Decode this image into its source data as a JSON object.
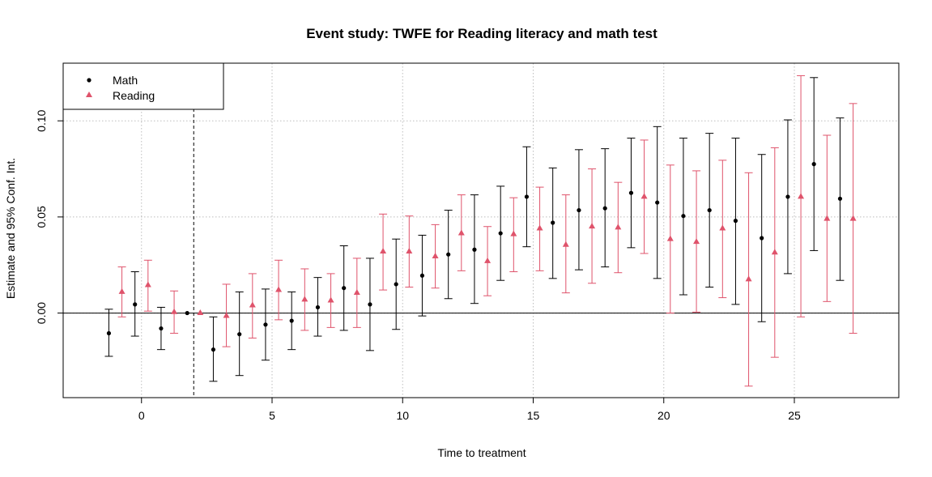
{
  "chart_data": {
    "type": "scatter",
    "title": "Event study: TWFE for Reading literacy and math test",
    "xlabel": "Time to treatment",
    "ylabel": "Estimate and 95% Conf. Int.",
    "xlim": [
      -3,
      29
    ],
    "ylim": [
      -0.044,
      0.13
    ],
    "x_ticks": [
      0,
      5,
      10,
      15,
      20,
      25
    ],
    "x_tick_labels": [
      "0",
      "5",
      "10",
      "15",
      "20",
      "25"
    ],
    "y_ticks": [
      0.0,
      0.05,
      0.1
    ],
    "y_tick_labels": [
      "0.00",
      "0.05",
      "0.10"
    ],
    "grid": true,
    "zero_line": 0,
    "treatment_line_x": 2,
    "legend_position": "top-left",
    "series": [
      {
        "name": "Math",
        "marker": "circle",
        "color": "#000000",
        "points": [
          {
            "x": -1.25,
            "y": -0.0105,
            "lo": -0.0225,
            "hi": 0.002
          },
          {
            "x": -0.25,
            "y": 0.0045,
            "lo": -0.012,
            "hi": 0.0215
          },
          {
            "x": 0.75,
            "y": -0.008,
            "lo": -0.019,
            "hi": 0.003
          },
          {
            "x": 1.75,
            "y": 0.0,
            "lo": 0.0,
            "hi": 0.0
          },
          {
            "x": 2.75,
            "y": -0.019,
            "lo": -0.0355,
            "hi": -0.002
          },
          {
            "x": 3.75,
            "y": -0.011,
            "lo": -0.0325,
            "hi": 0.011
          },
          {
            "x": 4.75,
            "y": -0.006,
            "lo": -0.0245,
            "hi": 0.0125
          },
          {
            "x": 5.75,
            "y": -0.004,
            "lo": -0.019,
            "hi": 0.011
          },
          {
            "x": 6.75,
            "y": 0.003,
            "lo": -0.012,
            "hi": 0.0185
          },
          {
            "x": 7.75,
            "y": 0.013,
            "lo": -0.009,
            "hi": 0.035
          },
          {
            "x": 8.75,
            "y": 0.0045,
            "lo": -0.0195,
            "hi": 0.0285
          },
          {
            "x": 9.75,
            "y": 0.015,
            "lo": -0.0085,
            "hi": 0.0385
          },
          {
            "x": 10.75,
            "y": 0.0195,
            "lo": -0.0015,
            "hi": 0.0405
          },
          {
            "x": 11.75,
            "y": 0.0305,
            "lo": 0.0075,
            "hi": 0.0535
          },
          {
            "x": 12.75,
            "y": 0.033,
            "lo": 0.005,
            "hi": 0.0615
          },
          {
            "x": 13.75,
            "y": 0.0415,
            "lo": 0.017,
            "hi": 0.066
          },
          {
            "x": 14.75,
            "y": 0.0605,
            "lo": 0.0345,
            "hi": 0.0865
          },
          {
            "x": 15.75,
            "y": 0.047,
            "lo": 0.018,
            "hi": 0.0755
          },
          {
            "x": 16.75,
            "y": 0.0535,
            "lo": 0.0225,
            "hi": 0.085
          },
          {
            "x": 17.75,
            "y": 0.0545,
            "lo": 0.024,
            "hi": 0.0855
          },
          {
            "x": 18.75,
            "y": 0.0625,
            "lo": 0.034,
            "hi": 0.091
          },
          {
            "x": 19.75,
            "y": 0.0575,
            "lo": 0.018,
            "hi": 0.097
          },
          {
            "x": 20.75,
            "y": 0.0505,
            "lo": 0.0095,
            "hi": 0.091
          },
          {
            "x": 21.75,
            "y": 0.0535,
            "lo": 0.0135,
            "hi": 0.0935
          },
          {
            "x": 22.75,
            "y": 0.048,
            "lo": 0.0045,
            "hi": 0.091
          },
          {
            "x": 23.75,
            "y": 0.039,
            "lo": -0.0045,
            "hi": 0.0825
          },
          {
            "x": 24.75,
            "y": 0.0605,
            "lo": 0.0205,
            "hi": 0.1005
          },
          {
            "x": 25.75,
            "y": 0.0775,
            "lo": 0.0325,
            "hi": 0.1225
          },
          {
            "x": 26.75,
            "y": 0.0595,
            "lo": 0.017,
            "hi": 0.1015
          }
        ]
      },
      {
        "name": "Reading",
        "marker": "triangle",
        "color": "#DF536B",
        "points": [
          {
            "x": -0.75,
            "y": 0.011,
            "lo": -0.002,
            "hi": 0.024
          },
          {
            "x": 0.25,
            "y": 0.0145,
            "lo": 0.001,
            "hi": 0.0275
          },
          {
            "x": 1.25,
            "y": 0.0005,
            "lo": -0.0105,
            "hi": 0.0115
          },
          {
            "x": 2.25,
            "y": 0.0,
            "lo": 0.0,
            "hi": 0.0
          },
          {
            "x": 3.25,
            "y": -0.0015,
            "lo": -0.0175,
            "hi": 0.015
          },
          {
            "x": 4.25,
            "y": 0.004,
            "lo": -0.013,
            "hi": 0.0205
          },
          {
            "x": 5.25,
            "y": 0.012,
            "lo": -0.0035,
            "hi": 0.0275
          },
          {
            "x": 6.25,
            "y": 0.007,
            "lo": -0.009,
            "hi": 0.023
          },
          {
            "x": 7.25,
            "y": 0.0065,
            "lo": -0.0075,
            "hi": 0.0205
          },
          {
            "x": 8.25,
            "y": 0.0105,
            "lo": -0.0075,
            "hi": 0.0285
          },
          {
            "x": 9.25,
            "y": 0.032,
            "lo": 0.012,
            "hi": 0.0515
          },
          {
            "x": 10.25,
            "y": 0.032,
            "lo": 0.0135,
            "hi": 0.0505
          },
          {
            "x": 11.25,
            "y": 0.0295,
            "lo": 0.013,
            "hi": 0.046
          },
          {
            "x": 12.25,
            "y": 0.0415,
            "lo": 0.022,
            "hi": 0.0615
          },
          {
            "x": 13.25,
            "y": 0.027,
            "lo": 0.009,
            "hi": 0.045
          },
          {
            "x": 14.25,
            "y": 0.041,
            "lo": 0.0215,
            "hi": 0.06
          },
          {
            "x": 15.25,
            "y": 0.044,
            "lo": 0.022,
            "hi": 0.0655
          },
          {
            "x": 16.25,
            "y": 0.0355,
            "lo": 0.0105,
            "hi": 0.0615
          },
          {
            "x": 17.25,
            "y": 0.045,
            "lo": 0.0155,
            "hi": 0.075
          },
          {
            "x": 18.25,
            "y": 0.0445,
            "lo": 0.021,
            "hi": 0.068
          },
          {
            "x": 19.25,
            "y": 0.0605,
            "lo": 0.031,
            "hi": 0.09
          },
          {
            "x": 20.25,
            "y": 0.0385,
            "lo": 0.0,
            "hi": 0.077
          },
          {
            "x": 21.25,
            "y": 0.037,
            "lo": 0.0005,
            "hi": 0.074
          },
          {
            "x": 22.25,
            "y": 0.044,
            "lo": 0.008,
            "hi": 0.0795
          },
          {
            "x": 23.25,
            "y": 0.0175,
            "lo": -0.038,
            "hi": 0.073
          },
          {
            "x": 24.25,
            "y": 0.0315,
            "lo": -0.023,
            "hi": 0.086
          },
          {
            "x": 25.25,
            "y": 0.0605,
            "lo": -0.002,
            "hi": 0.1235
          },
          {
            "x": 26.25,
            "y": 0.049,
            "lo": 0.006,
            "hi": 0.0925
          },
          {
            "x": 27.25,
            "y": 0.049,
            "lo": -0.0105,
            "hi": 0.109
          }
        ]
      }
    ]
  }
}
